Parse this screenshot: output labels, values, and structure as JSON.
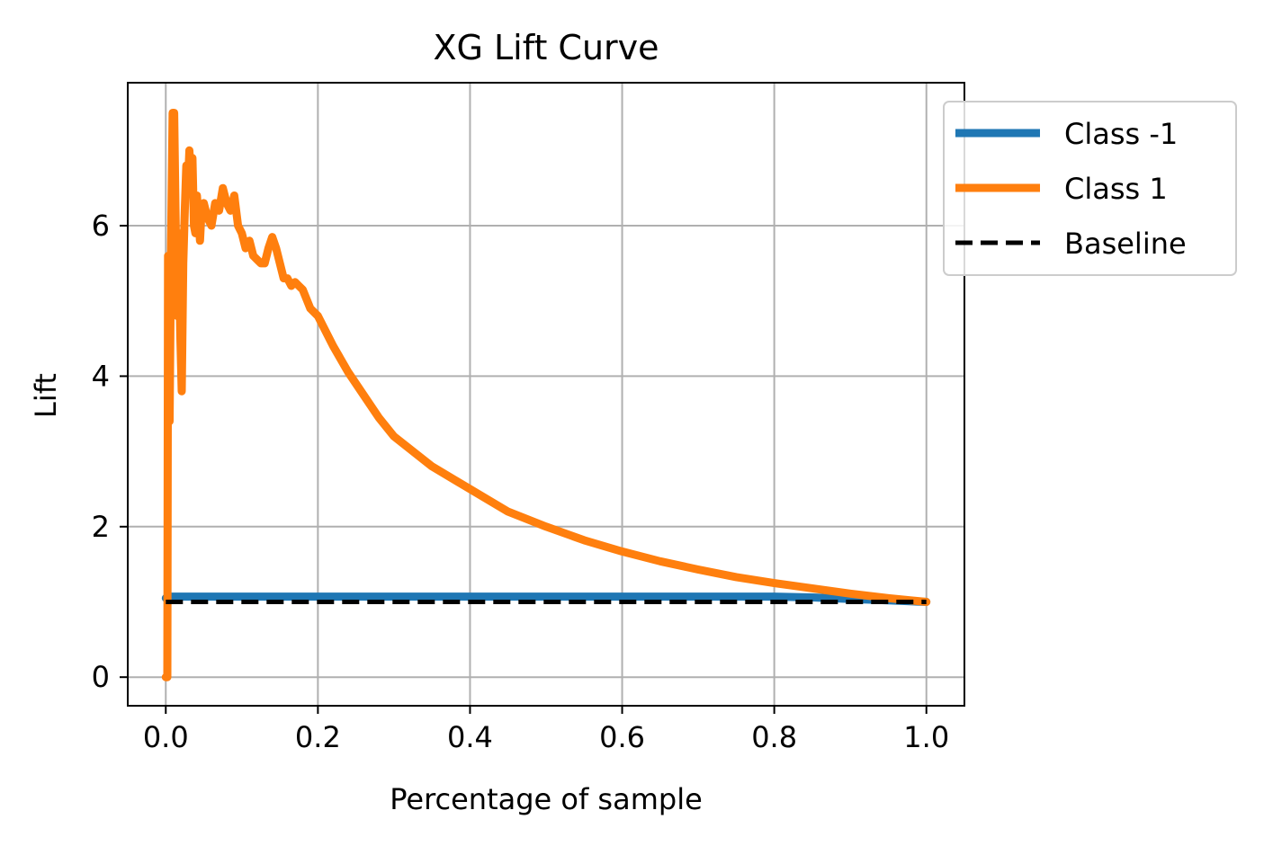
{
  "chart_data": {
    "type": "line",
    "title": "XG Lift Curve",
    "xlabel": "Percentage of sample",
    "ylabel": "Lift",
    "xlim": [
      -0.05,
      1.05
    ],
    "ylim": [
      -0.38,
      7.9
    ],
    "xticks": [
      0.0,
      0.2,
      0.4,
      0.6,
      0.8,
      1.0
    ],
    "xtick_labels": [
      "0.0",
      "0.2",
      "0.4",
      "0.6",
      "0.8",
      "1.0"
    ],
    "yticks": [
      0,
      2,
      4,
      6
    ],
    "ytick_labels": [
      "0",
      "2",
      "4",
      "6"
    ],
    "grid": true,
    "legend_position": "top-right, outside plot",
    "series": [
      {
        "name": "Class -1",
        "color": "#1f77b4",
        "style": "solid",
        "x": [
          0.0,
          0.002,
          0.01,
          0.1,
          0.2,
          0.4,
          0.6,
          0.8,
          0.85,
          0.9,
          0.95,
          1.0
        ],
        "y": [
          1.05,
          1.07,
          1.07,
          1.07,
          1.07,
          1.07,
          1.07,
          1.07,
          1.06,
          1.04,
          1.02,
          1.0
        ]
      },
      {
        "name": "Class 1",
        "color": "#ff7f0e",
        "style": "solid",
        "x": [
          0.0,
          0.002,
          0.003,
          0.005,
          0.007,
          0.009,
          0.011,
          0.013,
          0.015,
          0.017,
          0.019,
          0.021,
          0.023,
          0.025,
          0.027,
          0.029,
          0.031,
          0.033,
          0.035,
          0.037,
          0.039,
          0.041,
          0.043,
          0.045,
          0.047,
          0.05,
          0.055,
          0.06,
          0.065,
          0.07,
          0.075,
          0.08,
          0.085,
          0.09,
          0.095,
          0.1,
          0.105,
          0.11,
          0.115,
          0.12,
          0.125,
          0.13,
          0.135,
          0.14,
          0.145,
          0.15,
          0.155,
          0.16,
          0.165,
          0.17,
          0.175,
          0.18,
          0.19,
          0.2,
          0.22,
          0.24,
          0.26,
          0.28,
          0.3,
          0.35,
          0.4,
          0.45,
          0.5,
          0.55,
          0.6,
          0.65,
          0.7,
          0.75,
          0.8,
          0.85,
          0.9,
          0.95,
          1.0
        ],
        "y": [
          0.0,
          0.0,
          5.6,
          3.4,
          5.8,
          7.5,
          7.5,
          6.0,
          4.8,
          5.9,
          4.6,
          3.8,
          5.5,
          6.2,
          6.8,
          6.5,
          7.0,
          6.6,
          6.9,
          6.0,
          5.9,
          6.4,
          6.1,
          5.8,
          6.2,
          6.3,
          6.1,
          6.0,
          6.3,
          6.2,
          6.5,
          6.3,
          6.2,
          6.4,
          6.0,
          5.9,
          5.7,
          5.8,
          5.6,
          5.55,
          5.5,
          5.5,
          5.7,
          5.85,
          5.7,
          5.5,
          5.3,
          5.3,
          5.2,
          5.25,
          5.2,
          5.15,
          4.9,
          4.8,
          4.4,
          4.05,
          3.75,
          3.45,
          3.2,
          2.8,
          2.5,
          2.2,
          2.0,
          1.82,
          1.67,
          1.54,
          1.43,
          1.33,
          1.25,
          1.18,
          1.11,
          1.05,
          1.0
        ]
      },
      {
        "name": "Baseline",
        "color": "#000000",
        "style": "dashed",
        "x": [
          0.0,
          1.0
        ],
        "y": [
          1.0,
          1.0
        ]
      }
    ]
  }
}
